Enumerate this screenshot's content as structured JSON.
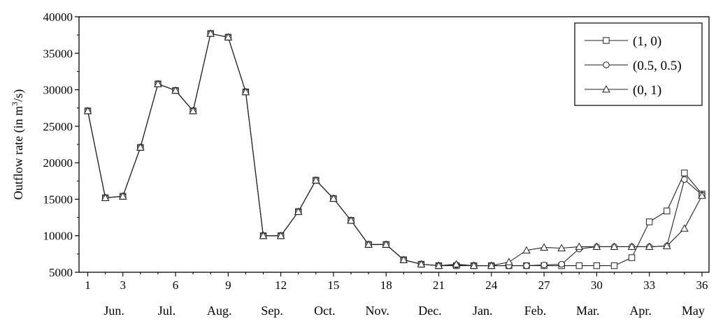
{
  "chart_data": {
    "type": "line",
    "ylabel": "Outflow rate (in m3/s)",
    "ylabel_parts": {
      "pre": "Outflow rate (in m",
      "sup": "3",
      "post": "/s)"
    },
    "xlabel": "",
    "xlim": [
      0.5,
      36.4
    ],
    "ylim": [
      5000,
      40000
    ],
    "y_ticks": [
      5000,
      10000,
      15000,
      20000,
      25000,
      30000,
      35000,
      40000
    ],
    "x_ticks": [
      1,
      3,
      6,
      9,
      12,
      15,
      18,
      21,
      24,
      27,
      30,
      33,
      36
    ],
    "month_labels": [
      {
        "label": "Jun.",
        "x": 2.5
      },
      {
        "label": "Jul.",
        "x": 5.5
      },
      {
        "label": "Aug.",
        "x": 8.5
      },
      {
        "label": "Sep.",
        "x": 11.5
      },
      {
        "label": "Oct.",
        "x": 14.5
      },
      {
        "label": "Nov.",
        "x": 17.5
      },
      {
        "label": "Dec.",
        "x": 20.5
      },
      {
        "label": "Jan.",
        "x": 23.5
      },
      {
        "label": "Feb.",
        "x": 26.5
      },
      {
        "label": "Mar.",
        "x": 29.5
      },
      {
        "label": "Apr.",
        "x": 32.5
      },
      {
        "label": "May",
        "x": 35.5
      }
    ],
    "legend_position": "top-right",
    "grid": false,
    "x": [
      1,
      2,
      3,
      4,
      5,
      6,
      7,
      8,
      9,
      10,
      11,
      12,
      13,
      14,
      15,
      16,
      17,
      18,
      19,
      20,
      21,
      22,
      23,
      24,
      25,
      26,
      27,
      28,
      29,
      30,
      31,
      32,
      33,
      34,
      35,
      36
    ],
    "series": [
      {
        "name": "(1, 0)",
        "marker": "square",
        "values": [
          27100,
          15200,
          15400,
          22100,
          30800,
          29900,
          27100,
          37700,
          37200,
          29700,
          10000,
          10000,
          13300,
          17600,
          15100,
          12100,
          8800,
          8800,
          6700,
          6100,
          5900,
          5900,
          5900,
          5900,
          5900,
          5900,
          5900,
          5900,
          5900,
          5900,
          5900,
          7000,
          11900,
          13400,
          18600,
          15700
        ]
      },
      {
        "name": "(0.5, 0.5)",
        "marker": "circle",
        "values": [
          27100,
          15200,
          15400,
          22100,
          30800,
          29900,
          27100,
          37700,
          37200,
          29700,
          10000,
          10000,
          13300,
          17600,
          15100,
          12100,
          8800,
          8800,
          6700,
          6100,
          5900,
          6000,
          5900,
          5900,
          5900,
          5900,
          6000,
          6100,
          8200,
          8500,
          8500,
          8500,
          8500,
          8600,
          17700,
          15600
        ]
      },
      {
        "name": "(0, 1)",
        "marker": "triangle",
        "values": [
          27100,
          15200,
          15400,
          22100,
          30800,
          29900,
          27100,
          37700,
          37200,
          29700,
          10000,
          10000,
          13300,
          17600,
          15100,
          12100,
          8800,
          8800,
          6700,
          6100,
          5900,
          6100,
          5900,
          5900,
          6400,
          8000,
          8400,
          8300,
          8500,
          8500,
          8500,
          8500,
          8500,
          8600,
          11000,
          15500
        ]
      }
    ]
  }
}
